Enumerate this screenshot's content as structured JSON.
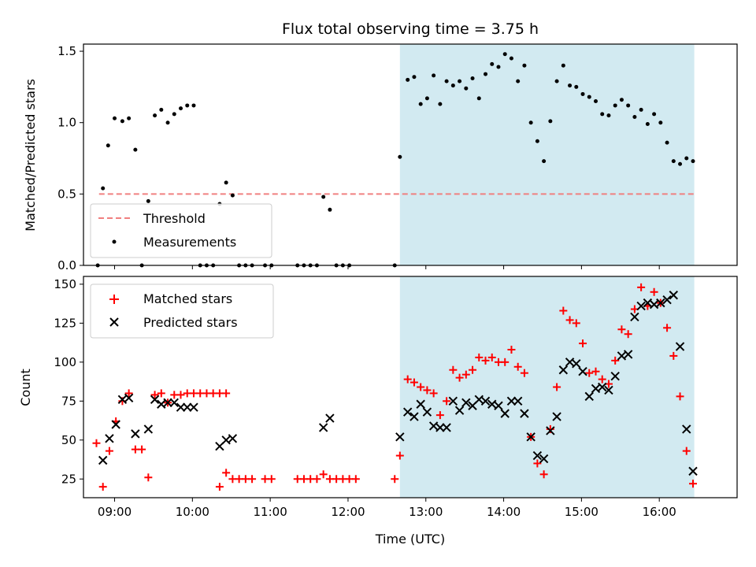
{
  "chart_data": [
    {
      "type": "scatter",
      "title": "Flux total observing time = 3.75 h",
      "xlabel": "",
      "ylabel": "Matched/Predicted stars",
      "xlim": [
        "08:36",
        "17:00"
      ],
      "ylim": [
        0,
        1.55
      ],
      "x_ticks": [
        {
          "t": "09:00",
          "label": "09:00"
        },
        {
          "t": "10:00",
          "label": "10:00"
        },
        {
          "t": "11:00",
          "label": "11:00"
        },
        {
          "t": "12:00",
          "label": "12:00"
        },
        {
          "t": "13:00",
          "label": "13:00"
        },
        {
          "t": "14:00",
          "label": "14:00"
        },
        {
          "t": "15:00",
          "label": "15:00"
        },
        {
          "t": "16:00",
          "label": "16:00"
        }
      ],
      "y_ticks": [
        {
          "v": 0.0,
          "label": "0.0"
        },
        {
          "v": 0.5,
          "label": "0.5"
        },
        {
          "v": 1.0,
          "label": "1.0"
        },
        {
          "v": 1.5,
          "label": "1.5"
        }
      ],
      "observing_window": {
        "start": "12:40",
        "end": "16:27",
        "color": "#add8e6"
      },
      "threshold": {
        "name": "Threshold",
        "value": 0.5,
        "x_start": "08:48",
        "x_end": "16:27",
        "color": "#f08080"
      },
      "series": [
        {
          "name": "Measurements",
          "color": "#000000",
          "marker": "dot",
          "points": [
            [
              "08:47",
              0
            ],
            [
              "08:51",
              0.54
            ],
            [
              "08:55",
              0.84
            ],
            [
              "09:00",
              1.03
            ],
            [
              "09:06",
              1.01
            ],
            [
              "09:11",
              1.03
            ],
            [
              "09:16",
              0.81
            ],
            [
              "09:21",
              0
            ],
            [
              "09:26",
              0.45
            ],
            [
              "09:31",
              1.05
            ],
            [
              "09:36",
              1.09
            ],
            [
              "09:41",
              1.0
            ],
            [
              "09:46",
              1.06
            ],
            [
              "09:51",
              1.1
            ],
            [
              "09:56",
              1.12
            ],
            [
              "10:01",
              1.12
            ],
            [
              "10:06",
              0
            ],
            [
              "10:11",
              0
            ],
            [
              "10:16",
              0
            ],
            [
              "10:21",
              0.43
            ],
            [
              "10:26",
              0.58
            ],
            [
              "10:31",
              0.49
            ],
            [
              "10:36",
              0
            ],
            [
              "10:41",
              0
            ],
            [
              "10:46",
              0
            ],
            [
              "10:56",
              0
            ],
            [
              "11:01",
              0
            ],
            [
              "11:21",
              0
            ],
            [
              "11:26",
              0
            ],
            [
              "11:31",
              0
            ],
            [
              "11:36",
              0
            ],
            [
              "11:41",
              0.48
            ],
            [
              "11:46",
              0.39
            ],
            [
              "11:51",
              0
            ],
            [
              "11:56",
              0
            ],
            [
              "12:01",
              0
            ],
            [
              "12:36",
              0
            ],
            [
              "12:40",
              0.76
            ],
            [
              "12:46",
              1.3
            ],
            [
              "12:51",
              1.32
            ],
            [
              "12:56",
              1.13
            ],
            [
              "13:01",
              1.17
            ],
            [
              "13:06",
              1.33
            ],
            [
              "13:11",
              1.13
            ],
            [
              "13:16",
              1.29
            ],
            [
              "13:21",
              1.26
            ],
            [
              "13:26",
              1.29
            ],
            [
              "13:31",
              1.24
            ],
            [
              "13:36",
              1.31
            ],
            [
              "13:41",
              1.17
            ],
            [
              "13:46",
              1.34
            ],
            [
              "13:51",
              1.41
            ],
            [
              "13:56",
              1.39
            ],
            [
              "14:01",
              1.48
            ],
            [
              "14:06",
              1.45
            ],
            [
              "14:11",
              1.29
            ],
            [
              "14:16",
              1.4
            ],
            [
              "14:21",
              1.0
            ],
            [
              "14:26",
              0.87
            ],
            [
              "14:31",
              0.73
            ],
            [
              "14:36",
              1.01
            ],
            [
              "14:41",
              1.29
            ],
            [
              "14:46",
              1.4
            ],
            [
              "14:51",
              1.26
            ],
            [
              "14:56",
              1.25
            ],
            [
              "15:01",
              1.2
            ],
            [
              "15:06",
              1.18
            ],
            [
              "15:11",
              1.15
            ],
            [
              "15:16",
              1.06
            ],
            [
              "15:21",
              1.05
            ],
            [
              "15:26",
              1.12
            ],
            [
              "15:31",
              1.16
            ],
            [
              "15:36",
              1.12
            ],
            [
              "15:41",
              1.04
            ],
            [
              "15:46",
              1.09
            ],
            [
              "15:51",
              0.99
            ],
            [
              "15:56",
              1.06
            ],
            [
              "16:01",
              1.0
            ],
            [
              "16:06",
              0.86
            ],
            [
              "16:11",
              0.73
            ],
            [
              "16:16",
              0.71
            ],
            [
              "16:21",
              0.75
            ],
            [
              "16:26",
              0.73
            ]
          ]
        }
      ],
      "legend": {
        "location": "lower-left",
        "entries": [
          "Threshold",
          "Measurements"
        ]
      }
    },
    {
      "type": "scatter",
      "title": "",
      "xlabel": "Time (UTC)",
      "ylabel": "Count",
      "xlim": [
        "08:36",
        "17:00"
      ],
      "ylim": [
        13,
        155
      ],
      "x_ticks": [
        {
          "t": "09:00",
          "label": "09:00"
        },
        {
          "t": "10:00",
          "label": "10:00"
        },
        {
          "t": "11:00",
          "label": "11:00"
        },
        {
          "t": "12:00",
          "label": "12:00"
        },
        {
          "t": "13:00",
          "label": "13:00"
        },
        {
          "t": "14:00",
          "label": "14:00"
        },
        {
          "t": "15:00",
          "label": "15:00"
        },
        {
          "t": "16:00",
          "label": "16:00"
        }
      ],
      "y_ticks": [
        {
          "v": 25,
          "label": "25"
        },
        {
          "v": 50,
          "label": "50"
        },
        {
          "v": 75,
          "label": "75"
        },
        {
          "v": 100,
          "label": "100"
        },
        {
          "v": 125,
          "label": "125"
        },
        {
          "v": 150,
          "label": "150"
        }
      ],
      "observing_window": {
        "start": "12:40",
        "end": "16:27",
        "color": "#add8e6"
      },
      "series": [
        {
          "name": "Matched stars",
          "color": "#ff0000",
          "marker": "plus",
          "points": [
            [
              "08:46",
              48
            ],
            [
              "08:51",
              20
            ],
            [
              "08:56",
              43
            ],
            [
              "09:01",
              62
            ],
            [
              "09:06",
              75
            ],
            [
              "09:11",
              80
            ],
            [
              "09:16",
              44
            ],
            [
              "09:21",
              44
            ],
            [
              "09:26",
              26
            ],
            [
              "09:31",
              79
            ],
            [
              "09:36",
              80
            ],
            [
              "09:41",
              74
            ],
            [
              "09:46",
              79
            ],
            [
              "09:51",
              79
            ],
            [
              "09:56",
              80
            ],
            [
              "10:01",
              80
            ],
            [
              "10:06",
              80
            ],
            [
              "10:11",
              80
            ],
            [
              "10:16",
              80
            ],
            [
              "10:21",
              80
            ],
            [
              "10:26",
              80
            ],
            [
              "10:21",
              20
            ],
            [
              "10:26",
              29
            ],
            [
              "10:31",
              25
            ],
            [
              "10:36",
              25
            ],
            [
              "10:41",
              25
            ],
            [
              "10:46",
              25
            ],
            [
              "10:56",
              25
            ],
            [
              "11:01",
              25
            ],
            [
              "11:21",
              25
            ],
            [
              "11:26",
              25
            ],
            [
              "11:31",
              25
            ],
            [
              "11:36",
              25
            ],
            [
              "11:41",
              28
            ],
            [
              "11:46",
              25
            ],
            [
              "11:51",
              25
            ],
            [
              "11:56",
              25
            ],
            [
              "12:01",
              25
            ],
            [
              "12:06",
              25
            ],
            [
              "12:36",
              25
            ],
            [
              "12:40",
              40
            ],
            [
              "12:46",
              89
            ],
            [
              "12:51",
              87
            ],
            [
              "12:56",
              84
            ],
            [
              "13:01",
              82
            ],
            [
              "13:06",
              80
            ],
            [
              "13:11",
              66
            ],
            [
              "13:16",
              75
            ],
            [
              "13:21",
              95
            ],
            [
              "13:26",
              90
            ],
            [
              "13:31",
              92
            ],
            [
              "13:36",
              95
            ],
            [
              "13:41",
              103
            ],
            [
              "13:46",
              101
            ],
            [
              "13:51",
              103
            ],
            [
              "13:56",
              100
            ],
            [
              "14:01",
              100
            ],
            [
              "14:06",
              108
            ],
            [
              "14:11",
              97
            ],
            [
              "14:16",
              93
            ],
            [
              "14:21",
              52
            ],
            [
              "14:26",
              35
            ],
            [
              "14:31",
              28
            ],
            [
              "14:36",
              57
            ],
            [
              "14:41",
              84
            ],
            [
              "14:46",
              133
            ],
            [
              "14:51",
              127
            ],
            [
              "14:56",
              125
            ],
            [
              "15:01",
              112
            ],
            [
              "15:06",
              93
            ],
            [
              "15:11",
              94
            ],
            [
              "15:16",
              89
            ],
            [
              "15:21",
              86
            ],
            [
              "15:26",
              101
            ],
            [
              "15:31",
              121
            ],
            [
              "15:36",
              118
            ],
            [
              "15:41",
              134
            ],
            [
              "15:46",
              148
            ],
            [
              "15:51",
              136
            ],
            [
              "15:56",
              145
            ],
            [
              "16:01",
              138
            ],
            [
              "16:06",
              122
            ],
            [
              "16:11",
              104
            ],
            [
              "16:16",
              78
            ],
            [
              "16:21",
              43
            ],
            [
              "16:26",
              22
            ]
          ]
        },
        {
          "name": "Predicted stars",
          "color": "#000000",
          "marker": "x",
          "points": [
            [
              "08:51",
              37
            ],
            [
              "08:56",
              51
            ],
            [
              "09:01",
              60
            ],
            [
              "09:06",
              76
            ],
            [
              "09:11",
              77
            ],
            [
              "09:16",
              54
            ],
            [
              "09:26",
              57
            ],
            [
              "09:31",
              76
            ],
            [
              "09:36",
              73
            ],
            [
              "09:41",
              74
            ],
            [
              "09:46",
              74
            ],
            [
              "09:51",
              71
            ],
            [
              "09:56",
              71
            ],
            [
              "10:01",
              71
            ],
            [
              "10:21",
              46
            ],
            [
              "10:26",
              50
            ],
            [
              "10:31",
              51
            ],
            [
              "11:41",
              58
            ],
            [
              "11:46",
              64
            ],
            [
              "12:40",
              52
            ],
            [
              "12:46",
              68
            ],
            [
              "12:51",
              65
            ],
            [
              "12:56",
              73
            ],
            [
              "13:01",
              68
            ],
            [
              "13:06",
              59
            ],
            [
              "13:11",
              58
            ],
            [
              "13:16",
              58
            ],
            [
              "13:21",
              75
            ],
            [
              "13:26",
              69
            ],
            [
              "13:31",
              74
            ],
            [
              "13:36",
              72
            ],
            [
              "13:41",
              76
            ],
            [
              "13:46",
              75
            ],
            [
              "13:51",
              73
            ],
            [
              "13:56",
              72
            ],
            [
              "14:01",
              67
            ],
            [
              "14:06",
              75
            ],
            [
              "14:11",
              75
            ],
            [
              "14:16",
              67
            ],
            [
              "14:21",
              52
            ],
            [
              "14:26",
              40
            ],
            [
              "14:31",
              38
            ],
            [
              "14:36",
              56
            ],
            [
              "14:41",
              65
            ],
            [
              "14:46",
              95
            ],
            [
              "14:51",
              100
            ],
            [
              "14:56",
              99
            ],
            [
              "15:01",
              94
            ],
            [
              "15:06",
              78
            ],
            [
              "15:11",
              83
            ],
            [
              "15:16",
              84
            ],
            [
              "15:21",
              82
            ],
            [
              "15:26",
              91
            ],
            [
              "15:31",
              104
            ],
            [
              "15:36",
              105
            ],
            [
              "15:41",
              129
            ],
            [
              "15:46",
              136
            ],
            [
              "15:51",
              138
            ],
            [
              "15:56",
              137
            ],
            [
              "16:01",
              138
            ],
            [
              "16:06",
              140
            ],
            [
              "16:11",
              143
            ],
            [
              "16:16",
              110
            ],
            [
              "16:21",
              57
            ],
            [
              "16:26",
              30
            ]
          ]
        }
      ],
      "legend": {
        "location": "upper-left",
        "entries": [
          "Matched stars",
          "Predicted stars"
        ]
      }
    }
  ]
}
